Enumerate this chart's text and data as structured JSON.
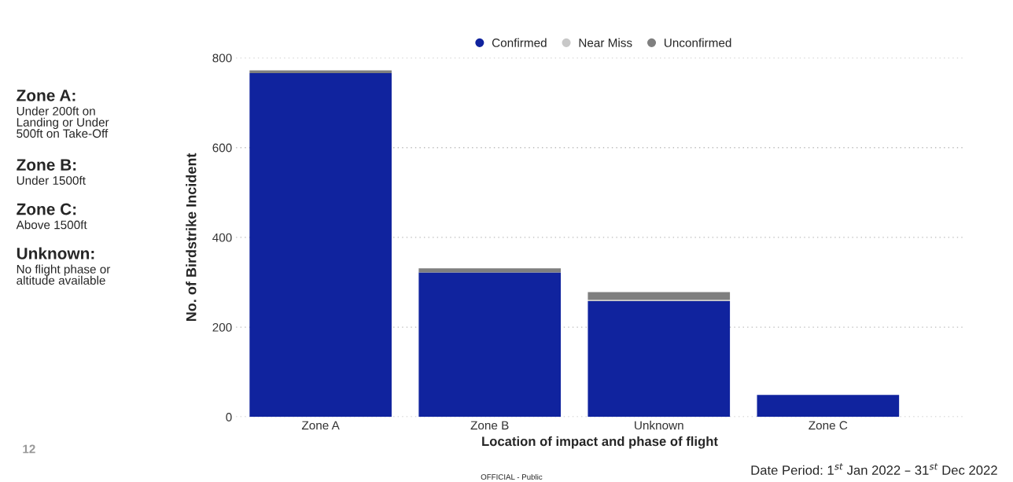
{
  "chart_data": {
    "type": "bar",
    "stacked": true,
    "xlabel": "Location of impact and phase of flight",
    "ylabel": "No. of Birdstrike Incident",
    "categories": [
      "Zone A",
      "Zone B",
      "Unknown",
      "Zone C"
    ],
    "series": [
      {
        "name": "Confirmed",
        "color": "#10239e",
        "values": [
          766,
          322,
          258,
          49
        ]
      },
      {
        "name": "Near Miss",
        "color": "#c8c8c8",
        "values": [
          null,
          null,
          3,
          0
        ]
      },
      {
        "name": "Unconfirmed",
        "color": "#7f7f7f",
        "values": [
          6,
          9,
          17,
          0
        ]
      }
    ],
    "ylim": [
      0,
      800
    ],
    "yticks": [
      0,
      200,
      400,
      600,
      800
    ],
    "grid": "y",
    "legend": "top",
    "marker": "circle",
    "annotations": [
      "Zone A:",
      "Under 200ft on\nLanding or Under\n500ft on Take-Off",
      "Zone B:",
      "Under 1500ft",
      "Zone C:",
      "Above 1500ft",
      "Unknown:",
      "No flight phase or\naltitude available",
      "12",
      "OFFICIAL - Public",
      "Date Period: 1$^{st}$ Jan 2022 – 31$^{st}$ Dec 2022"
    ]
  }
}
